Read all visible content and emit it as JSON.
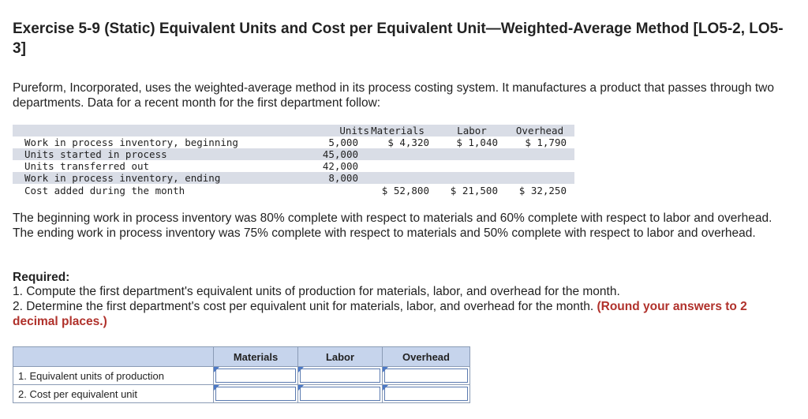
{
  "title": "Exercise 5-9 (Static) Equivalent Units and Cost per Equivalent Unit—Weighted-Average Method [LO5-2, LO5-3]",
  "intro": "Pureform, Incorporated, uses the weighted-average method in its process costing system. It manufactures a product that passes through two departments. Data for a recent month for the first department follow:",
  "data_table": {
    "headers": {
      "units": "Units",
      "materials": "Materials",
      "labor": "Labor",
      "overhead": "Overhead"
    },
    "rows": [
      {
        "label": "Work in process inventory, beginning",
        "units": "5,000",
        "materials": "$ 4,320",
        "labor": "$ 1,040",
        "overhead": "$ 1,790"
      },
      {
        "label": "Units started in process",
        "units": "45,000",
        "materials": "",
        "labor": "",
        "overhead": ""
      },
      {
        "label": "Units transferred out",
        "units": "42,000",
        "materials": "",
        "labor": "",
        "overhead": ""
      },
      {
        "label": "Work in process inventory, ending",
        "units": "8,000",
        "materials": "",
        "labor": "",
        "overhead": ""
      },
      {
        "label": "Cost added during the month",
        "units": "",
        "materials": "$ 52,800",
        "labor": "$ 21,500",
        "overhead": "$ 32,250"
      }
    ]
  },
  "wip_paragraph": "The beginning work in process inventory was 80% complete with respect to materials and 60% complete with respect to labor and overhead. The ending work in process inventory was 75% complete with respect to materials and 50% complete with respect to labor and overhead.",
  "required": {
    "heading": "Required:",
    "item1": "1. Compute the first department's equivalent units of production for materials, labor, and overhead for the month.",
    "item2_text": "2. Determine the first department's cost per equivalent unit for materials, labor, and overhead for the month. ",
    "item2_emphasis": "(Round your answers to 2 decimal places.)"
  },
  "answer_table": {
    "headers": {
      "materials": "Materials",
      "labor": "Labor",
      "overhead": "Overhead"
    },
    "rows": [
      {
        "label": "1. Equivalent units of production",
        "materials": "",
        "labor": "",
        "overhead": ""
      },
      {
        "label": "2. Cost per equivalent unit",
        "materials": "",
        "labor": "",
        "overhead": ""
      }
    ]
  },
  "colors": {
    "emphasis": "#b0312b",
    "header_fill": "#c6d4ec",
    "row_shade": "#d9dde6",
    "input_marker": "#4a78c8"
  }
}
